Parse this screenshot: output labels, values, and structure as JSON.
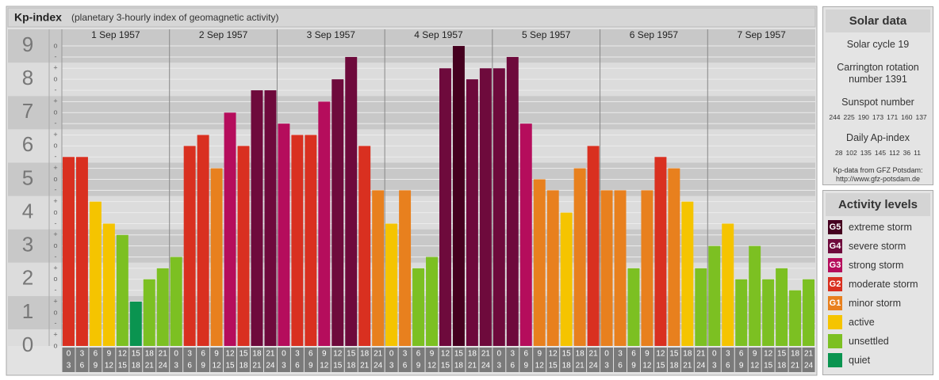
{
  "chart_data": {
    "type": "bar",
    "title": "Kp-index",
    "subtitle": "(planetary 3-hourly index of geomagnetic activity)",
    "ylim": [
      0,
      9.5
    ],
    "yticks": [
      0,
      1,
      2,
      3,
      4,
      5,
      6,
      7,
      8,
      9
    ],
    "minor_ticks": [
      {
        "value": 0,
        "label": "o"
      },
      {
        "value": 0.33,
        "label": "+"
      },
      {
        "value": 0.67,
        "label": "-"
      },
      {
        "value": 1,
        "label": "o"
      },
      {
        "value": 1.33,
        "label": "+"
      },
      {
        "value": 1.67,
        "label": "-"
      },
      {
        "value": 2,
        "label": "o"
      },
      {
        "value": 2.33,
        "label": "+"
      },
      {
        "value": 2.67,
        "label": "-"
      },
      {
        "value": 3,
        "label": "o"
      },
      {
        "value": 3.33,
        "label": "+"
      },
      {
        "value": 3.67,
        "label": "-"
      },
      {
        "value": 4,
        "label": "o"
      },
      {
        "value": 4.33,
        "label": "+"
      },
      {
        "value": 4.67,
        "label": "-"
      },
      {
        "value": 5,
        "label": "o"
      },
      {
        "value": 5.33,
        "label": "+"
      },
      {
        "value": 5.67,
        "label": "-"
      },
      {
        "value": 6,
        "label": "o"
      },
      {
        "value": 6.33,
        "label": "+"
      },
      {
        "value": 6.67,
        "label": "-"
      },
      {
        "value": 7,
        "label": "o"
      },
      {
        "value": 7.33,
        "label": "+"
      },
      {
        "value": 7.67,
        "label": "-"
      },
      {
        "value": 8,
        "label": "o"
      },
      {
        "value": 8.33,
        "label": "+"
      },
      {
        "value": 8.67,
        "label": "-"
      },
      {
        "value": 9,
        "label": "o"
      }
    ],
    "hours": [
      "0",
      "3",
      "6",
      "9",
      "12",
      "15",
      "18",
      "21",
      "24"
    ],
    "days": [
      {
        "label": "1 Sep 1957",
        "values": [
          5.67,
          5.67,
          4.33,
          3.67,
          3.33,
          1.33,
          2,
          2.33
        ],
        "colors": [
          "#d93020",
          "#d93020",
          "#f5c400",
          "#f5c400",
          "#7cc022",
          "#0a9450",
          "#7cc022",
          "#7cc022"
        ]
      },
      {
        "label": "2 Sep 1957",
        "values": [
          2.67,
          6,
          6.33,
          5.33,
          7,
          6,
          7.67,
          7.67
        ],
        "colors": [
          "#7cc022",
          "#d93020",
          "#d93020",
          "#e8801e",
          "#b50d5c",
          "#d93020",
          "#6e0a3c",
          "#6e0a3c"
        ]
      },
      {
        "label": "3 Sep 1957",
        "values": [
          6.67,
          6.33,
          6.33,
          7.33,
          8,
          8.67,
          6,
          4.67
        ],
        "colors": [
          "#b50d5c",
          "#d93020",
          "#d93020",
          "#b50d5c",
          "#6e0a3c",
          "#6e0a3c",
          "#d93020",
          "#e8801e"
        ]
      },
      {
        "label": "4 Sep 1957",
        "values": [
          3.67,
          4.67,
          2.33,
          2.67,
          8.33,
          9,
          8,
          8.33
        ],
        "colors": [
          "#f5c400",
          "#e8801e",
          "#7cc022",
          "#7cc022",
          "#6e0a3c",
          "#45001f",
          "#6e0a3c",
          "#6e0a3c"
        ]
      },
      {
        "label": "5 Sep 1957",
        "values": [
          8.33,
          8.67,
          6.67,
          5,
          4.67,
          4,
          5.33,
          6
        ],
        "colors": [
          "#6e0a3c",
          "#6e0a3c",
          "#b50d5c",
          "#e8801e",
          "#e8801e",
          "#f5c400",
          "#e8801e",
          "#d93020"
        ]
      },
      {
        "label": "6 Sep 1957",
        "values": [
          4.67,
          4.67,
          2.33,
          4.67,
          5.67,
          5.33,
          4.33,
          2.33
        ],
        "colors": [
          "#e8801e",
          "#e8801e",
          "#7cc022",
          "#e8801e",
          "#d93020",
          "#e8801e",
          "#f5c400",
          "#7cc022"
        ]
      },
      {
        "label": "7 Sep 1957",
        "values": [
          3,
          3.67,
          2,
          3,
          2,
          2.33,
          1.67,
          2
        ],
        "colors": [
          "#7cc022",
          "#f5c400",
          "#7cc022",
          "#7cc022",
          "#7cc022",
          "#7cc022",
          "#7cc022",
          "#7cc022"
        ]
      }
    ]
  },
  "solar_data": {
    "title": "Solar data",
    "cycle": "Solar cycle 19",
    "rotation": "Carrington rotation number 1391",
    "sunspot_title": "Sunspot number",
    "sunspot_numbers": [
      244,
      225,
      190,
      173,
      171,
      160,
      137
    ],
    "ap_title": "Daily Ap-index",
    "ap_index": [
      28,
      102,
      135,
      145,
      112,
      36,
      11
    ],
    "source": "Kp-data from GFZ Potsdam:",
    "source_url": "http://www.gfz-potsdam.de"
  },
  "activity_levels": {
    "title": "Activity levels",
    "items": [
      {
        "badge": "G5",
        "label": "extreme storm",
        "color": "#45001f"
      },
      {
        "badge": "G4",
        "label": "severe storm",
        "color": "#6e0a3c"
      },
      {
        "badge": "G3",
        "label": "strong storm",
        "color": "#b50d5c"
      },
      {
        "badge": "G2",
        "label": "moderate storm",
        "color": "#d93020"
      },
      {
        "badge": "G1",
        "label": "minor storm",
        "color": "#e8801e"
      },
      {
        "label": "active",
        "color": "#f5c400"
      },
      {
        "label": "unsettled",
        "color": "#7cc022"
      },
      {
        "label": "quiet",
        "color": "#0a9450"
      }
    ]
  }
}
